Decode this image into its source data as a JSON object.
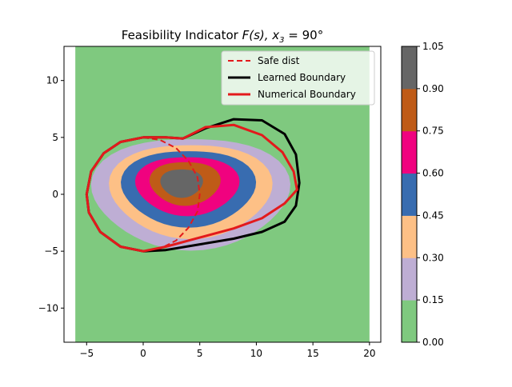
{
  "chart_data": {
    "type": "contour",
    "title_main": "Feasibility Indicator ",
    "title_math": "F(s), x",
    "title_sub": "3",
    "title_end": " = 90°",
    "xlim": [
      -7,
      21
    ],
    "ylim": [
      -13,
      13
    ],
    "xticks": [
      -5,
      0,
      5,
      10,
      15,
      20
    ],
    "yticks": [
      -10,
      -5,
      0,
      5,
      10
    ],
    "field_extent": {
      "x": [
        -6,
        20
      ],
      "y": [
        -13,
        13
      ]
    },
    "levels": [
      0.0,
      0.15,
      0.3,
      0.45,
      0.6,
      0.75,
      0.9,
      1.05
    ],
    "level_colors": [
      "#7fc97f",
      "#beaed4",
      "#fdc086",
      "#386cb0",
      "#f0027f",
      "#bf5b17",
      "#666666"
    ],
    "colorbar_ticks": [
      "0.00",
      "0.15",
      "0.30",
      "0.45",
      "0.60",
      "0.75",
      "0.90",
      "1.05"
    ],
    "contour_regions": [
      {
        "level": 0.15,
        "center": [
          4.2,
          0.2
        ],
        "rx": 8.4,
        "ry": 5.1
      },
      {
        "level": 0.3,
        "center": [
          4.2,
          0.4
        ],
        "rx": 6.9,
        "ry": 4.3
      },
      {
        "level": 0.45,
        "center": [
          4.0,
          0.6
        ],
        "rx": 5.7,
        "ry": 3.5
      },
      {
        "level": 0.6,
        "center": [
          3.9,
          0.8
        ],
        "rx": 4.4,
        "ry": 2.7
      },
      {
        "level": 0.75,
        "center": [
          3.7,
          1.0
        ],
        "rx": 3.0,
        "ry": 2.0
      },
      {
        "level": 0.9,
        "center": [
          3.4,
          1.0
        ],
        "rx": 1.8,
        "ry": 1.3
      }
    ],
    "series": [
      {
        "name": "Safe dist",
        "color": "#e31a1c",
        "style": "dashed",
        "x": [
          0.0,
          1.5,
          2.9,
          4.0,
          4.8,
          5.0,
          4.8,
          4.0,
          2.9,
          1.5,
          0.0
        ],
        "y": [
          5.0,
          4.77,
          4.07,
          2.94,
          1.5,
          0.0,
          -1.5,
          -2.94,
          -4.07,
          -4.77,
          -5.0
        ]
      },
      {
        "name": "Learned Boundary",
        "color": "#000000",
        "style": "solid",
        "x": [
          -5.0,
          -4.6,
          -3.5,
          -2.0,
          0.0,
          2.0,
          3.5,
          5.5,
          8.0,
          10.5,
          12.5,
          13.5,
          13.8,
          13.5,
          12.5,
          10.5,
          8.0,
          5.0,
          2.0,
          0.0,
          -2.0,
          -3.8,
          -4.8,
          -5.0
        ],
        "y": [
          0.0,
          2.0,
          3.6,
          4.6,
          5.0,
          5.0,
          4.9,
          5.8,
          6.6,
          6.5,
          5.3,
          3.5,
          1.0,
          -1.0,
          -2.4,
          -3.3,
          -3.9,
          -4.4,
          -4.9,
          -5.0,
          -4.6,
          -3.3,
          -1.6,
          0.0
        ]
      },
      {
        "name": "Numerical Boundary",
        "color": "#e31a1c",
        "style": "solid",
        "x": [
          -5.0,
          -4.6,
          -3.5,
          -2.0,
          0.0,
          2.0,
          3.5,
          5.5,
          8.0,
          10.5,
          12.3,
          13.3,
          13.6,
          12.5,
          10.5,
          8.0,
          5.0,
          2.0,
          0.0,
          -2.0,
          -3.8,
          -4.8,
          -5.0
        ],
        "y": [
          0.0,
          2.0,
          3.6,
          4.6,
          5.0,
          5.0,
          4.9,
          5.9,
          6.1,
          5.2,
          3.7,
          2.0,
          0.4,
          -0.8,
          -2.1,
          -3.0,
          -3.8,
          -4.6,
          -5.0,
          -4.6,
          -3.3,
          -1.6,
          0.0
        ]
      }
    ],
    "legend_position": "upper right"
  }
}
